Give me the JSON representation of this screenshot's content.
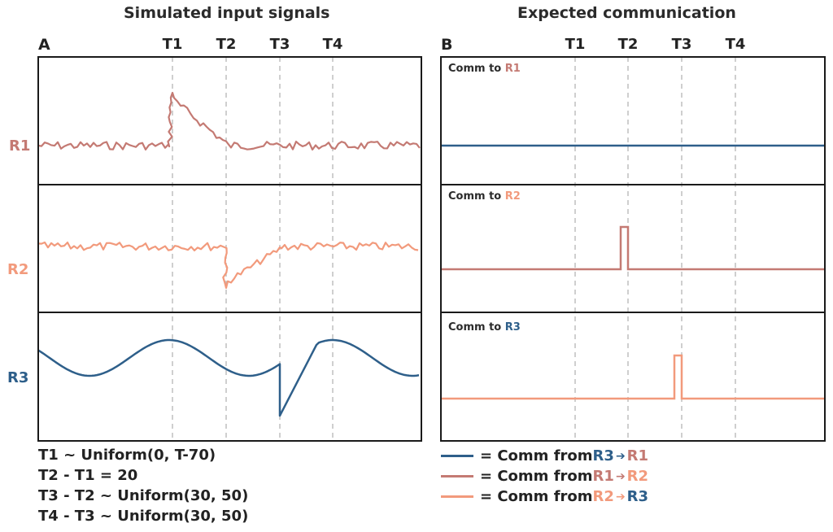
{
  "titles": {
    "left": "Simulated input signals",
    "right": "Expected communication"
  },
  "panels": {
    "left_letter": "A",
    "right_letter": "B"
  },
  "ticks": [
    "T1",
    "T2",
    "T3",
    "T4"
  ],
  "rows": [
    {
      "label": "R1",
      "color": "#c47a73"
    },
    {
      "label": "R2",
      "color": "#f29a7c"
    },
    {
      "label": "R3",
      "color": "#2e5f8a"
    }
  ],
  "comm_labels": [
    {
      "prefix": "Comm to ",
      "target": "R1",
      "color": "#c47a73"
    },
    {
      "prefix": "Comm to ",
      "target": "R2",
      "color": "#f29a7c"
    },
    {
      "prefix": "Comm to ",
      "target": "R3",
      "color": "#2e5f8a"
    }
  ],
  "formulas": [
    "T1 ~ Uniform(0, T-70)",
    "T2 - T1 = 20",
    "T3 - T2 ~ Uniform(30, 50)",
    "T4 - T3 ~ Uniform(30, 50)"
  ],
  "legend": [
    {
      "line_color": "#2e5f8a",
      "eq": "= Comm from ",
      "from": "R3",
      "from_color": "#2e5f8a",
      "arrow": "➔",
      "to": "R1",
      "to_color": "#c47a73"
    },
    {
      "line_color": "#c47a73",
      "eq": "= Comm from ",
      "from": "R1",
      "from_color": "#c47a73",
      "arrow": "➔",
      "to": "R2",
      "to_color": "#f29a7c"
    },
    {
      "line_color": "#f29a7c",
      "eq": "= Comm from ",
      "from": "R2",
      "from_color": "#f29a7c",
      "arrow": "➔",
      "to": "R3",
      "to_color": "#2e5f8a"
    }
  ],
  "colors": {
    "frame": "#1a1a1a",
    "dashed": "#b5b5b5"
  }
}
